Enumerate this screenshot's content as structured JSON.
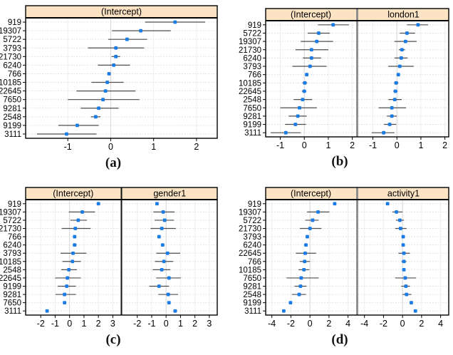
{
  "colors": {
    "point": "#1b7ce6",
    "strip_bg": "#fce3c4",
    "strip_border": "#000000",
    "whisker": "#4d4d4d",
    "grid_h": "#dcdcdc",
    "grid_v": "#eeeeee",
    "grid_zero": "#d5d5d5",
    "axis": "#000000"
  },
  "chart_data": [
    {
      "type": "dotplot",
      "caption": "(a)",
      "rows": [
        "919",
        "19307",
        "5722",
        "3793",
        "21730",
        "6240",
        "766",
        "10185",
        "22645",
        "7650",
        "9281",
        "2548",
        "9199",
        "3111"
      ],
      "xticks": [
        -1,
        0,
        1,
        2
      ],
      "xdomain": [
        -1.95,
        2.45
      ],
      "divider_color": "#8f8f8f",
      "panels": [
        {
          "header": "(Intercept)",
          "values": [
            {
              "est": 1.5,
              "lo": 0.8,
              "hi": 2.2
            },
            {
              "est": 0.7,
              "lo": 0.03,
              "hi": 1.4
            },
            {
              "est": 0.38,
              "lo": -0.06,
              "hi": 0.85
            },
            {
              "est": 0.12,
              "lo": -0.53,
              "hi": 0.78
            },
            {
              "est": 0.12,
              "lo": 0.02,
              "hi": 0.22
            },
            {
              "est": 0.07,
              "lo": -0.3,
              "hi": 0.45
            },
            {
              "est": -0.04,
              "lo": -0.04,
              "hi": -0.04
            },
            {
              "est": -0.08,
              "lo": -0.45,
              "hi": 0.3
            },
            {
              "est": -0.12,
              "lo": -0.8,
              "hi": 0.58
            },
            {
              "est": -0.18,
              "lo": -1.0,
              "hi": 0.67
            },
            {
              "est": -0.28,
              "lo": -0.7,
              "hi": 0.18
            },
            {
              "est": -0.35,
              "lo": -0.46,
              "hi": -0.24
            },
            {
              "est": -0.78,
              "lo": -1.22,
              "hi": -0.28
            },
            {
              "est": -1.03,
              "lo": -1.72,
              "hi": -0.33
            }
          ]
        }
      ]
    },
    {
      "type": "dotplot",
      "caption": "(b)",
      "rows": [
        "919",
        "5722",
        "19307",
        "21730",
        "6240",
        "3793",
        "766",
        "10185",
        "22645",
        "2548",
        "7650",
        "9281",
        "9199",
        "3111"
      ],
      "xticks": [
        -1,
        0,
        1,
        2
      ],
      "xdomain": [
        -1.55,
        2.1
      ],
      "divider_color": "#8f8f8f",
      "panels": [
        {
          "header": "(Intercept)",
          "values": [
            {
              "est": 1.2,
              "lo": 0.57,
              "hi": 1.86
            },
            {
              "est": 0.6,
              "lo": 0.14,
              "hi": 1.06
            },
            {
              "est": 0.52,
              "lo": -0.15,
              "hi": 1.2
            },
            {
              "est": 0.3,
              "lo": -0.37,
              "hi": 1.0
            },
            {
              "est": 0.3,
              "lo": -0.06,
              "hi": 0.7
            },
            {
              "est": 0.24,
              "lo": -0.5,
              "hi": 0.93
            },
            {
              "est": 0.1,
              "lo": 0.1,
              "hi": 0.1
            },
            {
              "est": 0.02,
              "lo": -0.08,
              "hi": 0.12
            },
            {
              "est": 0.0,
              "lo": -0.1,
              "hi": 0.08
            },
            {
              "est": -0.07,
              "lo": -0.44,
              "hi": 0.33
            },
            {
              "est": -0.2,
              "lo": -1.0,
              "hi": 0.52
            },
            {
              "est": -0.27,
              "lo": -0.65,
              "hi": 0.1
            },
            {
              "est": -0.37,
              "lo": -0.8,
              "hi": 0.07
            },
            {
              "est": -0.77,
              "lo": -1.4,
              "hi": -0.15
            }
          ]
        },
        {
          "header": "london1",
          "values": [
            {
              "est": 0.88,
              "lo": 0.42,
              "hi": 1.3
            },
            {
              "est": 0.42,
              "lo": 0.12,
              "hi": 0.76
            },
            {
              "est": 0.36,
              "lo": -0.1,
              "hi": 0.82
            },
            {
              "est": 0.21,
              "lo": 0.08,
              "hi": 0.34
            },
            {
              "est": 0.18,
              "lo": -0.1,
              "hi": 0.45
            },
            {
              "est": 0.12,
              "lo": -0.36,
              "hi": 0.7
            },
            {
              "est": 0.06,
              "lo": 0.06,
              "hi": 0.06
            },
            {
              "est": -0.03,
              "lo": -0.12,
              "hi": 0.06
            },
            {
              "est": -0.06,
              "lo": -0.15,
              "hi": 0.03
            },
            {
              "est": -0.09,
              "lo": -0.35,
              "hi": 0.2
            },
            {
              "est": -0.21,
              "lo": -0.76,
              "hi": 0.38
            },
            {
              "est": -0.21,
              "lo": -0.42,
              "hi": 0.0
            },
            {
              "est": -0.3,
              "lo": -0.54,
              "hi": -0.03
            },
            {
              "est": -0.55,
              "lo": -1.05,
              "hi": -0.1
            }
          ]
        }
      ]
    },
    {
      "type": "dotplot",
      "caption": "(c)",
      "rows": [
        "919",
        "19307",
        "5722",
        "21730",
        "766",
        "6240",
        "3793",
        "10185",
        "2548",
        "22645",
        "9199",
        "9281",
        "7650",
        "3111"
      ],
      "xticks": [
        -2,
        -1,
        0,
        1,
        2,
        3
      ],
      "xdomain": [
        -2.95,
        3.45
      ],
      "divider_color": "#111111",
      "panels": [
        {
          "header": "(Intercept)",
          "values": [
            {
              "est": 2.0,
              "lo": 1.88,
              "hi": 2.12
            },
            {
              "est": 0.88,
              "lo": -0.05,
              "hi": 1.76
            },
            {
              "est": 0.6,
              "lo": 0.05,
              "hi": 1.2
            },
            {
              "est": 0.4,
              "lo": -0.54,
              "hi": 1.46
            },
            {
              "est": 0.35,
              "lo": 0.35,
              "hi": 0.35
            },
            {
              "est": 0.35,
              "lo": 0.22,
              "hi": 0.48
            },
            {
              "est": 0.24,
              "lo": -0.63,
              "hi": 1.17
            },
            {
              "est": 0.2,
              "lo": -0.5,
              "hi": 0.78
            },
            {
              "est": -0.05,
              "lo": -0.58,
              "hi": 0.5
            },
            {
              "est": -0.15,
              "lo": -1.0,
              "hi": 0.78
            },
            {
              "est": -0.2,
              "lo": -0.83,
              "hi": 0.44
            },
            {
              "est": -0.35,
              "lo": -0.98,
              "hi": 0.44
            },
            {
              "est": -0.35,
              "lo": -0.35,
              "hi": -0.35
            },
            {
              "est": -1.56,
              "lo": -1.68,
              "hi": -1.44
            }
          ]
        },
        {
          "header": "gender1",
          "values": [
            {
              "est": -0.63,
              "lo": -0.63,
              "hi": -0.63
            },
            {
              "est": -0.2,
              "lo": -0.88,
              "hi": 0.59
            },
            {
              "est": -0.1,
              "lo": -0.8,
              "hi": 0.54
            },
            {
              "est": -0.3,
              "lo": -1.08,
              "hi": 0.68
            },
            {
              "est": -0.49,
              "lo": -0.49,
              "hi": -0.49
            },
            {
              "est": -0.24,
              "lo": -0.36,
              "hi": -0.12
            },
            {
              "est": 0.1,
              "lo": -0.68,
              "hi": 0.98
            },
            {
              "est": -0.15,
              "lo": -0.78,
              "hi": 0.49
            },
            {
              "est": -0.3,
              "lo": -0.93,
              "hi": 0.29
            },
            {
              "est": 0.2,
              "lo": -0.68,
              "hi": 1.02
            },
            {
              "est": -0.49,
              "lo": -1.17,
              "hi": 0.2
            },
            {
              "est": 0.15,
              "lo": -0.54,
              "hi": 0.83
            },
            {
              "est": 0.2,
              "lo": 0.2,
              "hi": 0.2
            },
            {
              "est": 0.63,
              "lo": 0.5,
              "hi": 0.76
            }
          ]
        }
      ]
    },
    {
      "type": "dotplot",
      "caption": "(d)",
      "rows": [
        "919",
        "19307",
        "5722",
        "21730",
        "3793",
        "6240",
        "22645",
        "766",
        "10185",
        "7650",
        "9281",
        "2548",
        "9199",
        "3111"
      ],
      "xticks": [
        -4,
        -2,
        0,
        2,
        4
      ],
      "xdomain": [
        -4.5,
        4.7
      ],
      "divider_color": "#8f8f8f",
      "panels": [
        {
          "header": "(Intercept)",
          "values": [
            {
              "est": 2.6,
              "lo": 2.6,
              "hi": 2.6
            },
            {
              "est": 0.85,
              "lo": -0.3,
              "hi": 2.04
            },
            {
              "est": 0.28,
              "lo": -0.5,
              "hi": 0.92
            },
            {
              "est": 0.0,
              "lo": -1.06,
              "hi": 1.2
            },
            {
              "est": -0.28,
              "lo": -0.28,
              "hi": -0.28
            },
            {
              "est": -0.42,
              "lo": -0.6,
              "hi": -0.25
            },
            {
              "est": -0.5,
              "lo": -1.48,
              "hi": 0.64
            },
            {
              "est": -0.56,
              "lo": -1.06,
              "hi": 0.0
            },
            {
              "est": -0.63,
              "lo": -1.2,
              "hi": -0.07
            },
            {
              "est": -0.92,
              "lo": -2.46,
              "hi": 0.92
            },
            {
              "est": -0.99,
              "lo": -1.62,
              "hi": -0.35
            },
            {
              "est": -1.13,
              "lo": -1.9,
              "hi": -0.42
            },
            {
              "est": -2.04,
              "lo": -2.04,
              "hi": -2.04
            },
            {
              "est": -2.75,
              "lo": -2.9,
              "hi": -2.6
            }
          ]
        },
        {
          "header": "activity1",
          "values": [
            {
              "est": -1.57,
              "lo": -1.57,
              "hi": -1.57
            },
            {
              "est": -0.64,
              "lo": -1.07,
              "hi": 0.0
            },
            {
              "est": -0.28,
              "lo": -0.7,
              "hi": 0.14
            },
            {
              "est": -0.21,
              "lo": -0.78,
              "hi": 0.42
            },
            {
              "est": 0.07,
              "lo": 0.07,
              "hi": 0.07
            },
            {
              "est": 0.07,
              "lo": -0.05,
              "hi": 0.2
            },
            {
              "est": 0.14,
              "lo": -0.43,
              "hi": 0.78
            },
            {
              "est": 0.14,
              "lo": -0.12,
              "hi": 0.4
            },
            {
              "est": 0.14,
              "lo": 0.0,
              "hi": 0.3
            },
            {
              "est": 0.28,
              "lo": -0.78,
              "hi": 1.42
            },
            {
              "est": 0.35,
              "lo": -0.14,
              "hi": 0.78
            },
            {
              "est": 0.42,
              "lo": 0.0,
              "hi": 0.92
            },
            {
              "est": 0.92,
              "lo": 0.92,
              "hi": 0.92
            },
            {
              "est": 1.35,
              "lo": 1.2,
              "hi": 1.5
            }
          ]
        }
      ]
    }
  ]
}
